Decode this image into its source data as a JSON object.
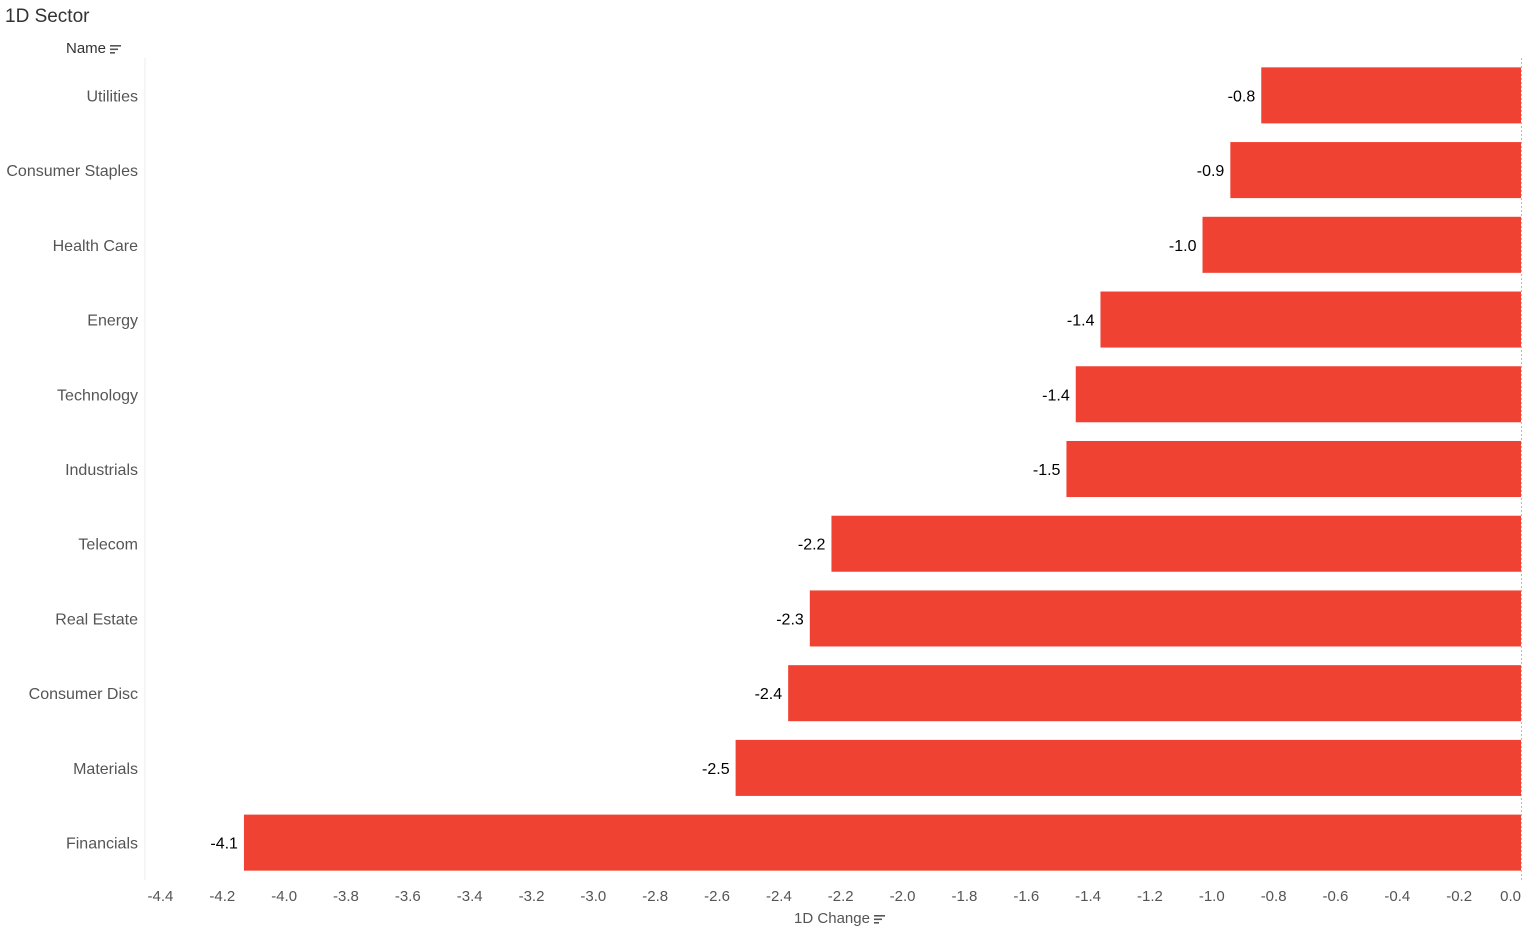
{
  "title": "1D Sector",
  "row_header": "Name",
  "chart_data": {
    "type": "bar",
    "orientation": "horizontal",
    "categories": [
      "Utilities",
      "Consumer Staples",
      "Health Care",
      "Energy",
      "Technology",
      "Industrials",
      "Telecom",
      "Real Estate",
      "Consumer Disc",
      "Materials",
      "Financials"
    ],
    "values": [
      -0.84,
      -0.94,
      -1.03,
      -1.36,
      -1.44,
      -1.47,
      -2.23,
      -2.3,
      -2.37,
      -2.54,
      -4.13
    ],
    "data_labels": [
      "-0.8",
      "-0.9",
      "-1.0",
      "-1.4",
      "-1.4",
      "-1.5",
      "-2.2",
      "-2.3",
      "-2.4",
      "-2.5",
      "-4.1"
    ],
    "xlabel": "1D Change",
    "xlim": [
      -4.45,
      0
    ],
    "x_ticks": [
      "-4.4",
      "-4.2",
      "-4.0",
      "-3.8",
      "-3.6",
      "-3.4",
      "-3.2",
      "-3.0",
      "-2.8",
      "-2.6",
      "-2.4",
      "-2.2",
      "-2.0",
      "-1.8",
      "-1.6",
      "-1.4",
      "-1.2",
      "-1.0",
      "-0.8",
      "-0.6",
      "-0.4",
      "-0.2",
      "0.0"
    ],
    "bar_color": "#f04232",
    "grid": false
  }
}
